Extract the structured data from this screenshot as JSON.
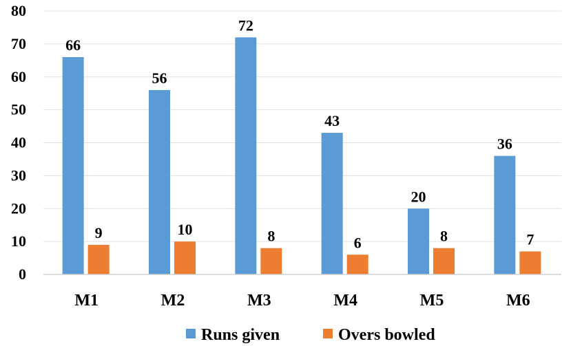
{
  "chart_data": {
    "type": "bar",
    "categories": [
      "M1",
      "M2",
      "M3",
      "M4",
      "M5",
      "M6"
    ],
    "series": [
      {
        "name": "Runs given",
        "values": [
          66,
          56,
          72,
          43,
          20,
          36
        ],
        "color": "#5B9BD5"
      },
      {
        "name": "Overs bowled",
        "values": [
          9,
          10,
          8,
          6,
          8,
          7
        ],
        "color": "#ED7D31"
      }
    ],
    "yticks": [
      "0",
      "10",
      "20",
      "30",
      "40",
      "50",
      "60",
      "70",
      "80"
    ],
    "ylim": [
      0,
      80
    ],
    "grid": true,
    "legend_position": "bottom"
  }
}
